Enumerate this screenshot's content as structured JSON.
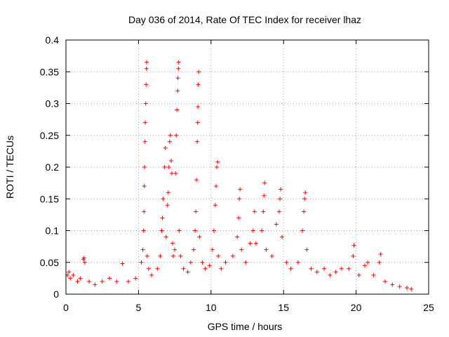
{
  "chart_data": {
    "type": "scatter",
    "title": "Day 036 of 2014, Rate Of TEC Index for receiver lhaz",
    "xlabel": "GPS time / hours",
    "ylabel": "ROTI / TECUs",
    "xlim": [
      0,
      25
    ],
    "ylim": [
      0,
      0.4
    ],
    "grid": true,
    "marker": "+",
    "color": "#ff0000",
    "xticks": [
      0,
      5,
      10,
      15,
      20,
      25
    ],
    "xtick_labels": [
      "0",
      "5",
      "10",
      "15",
      "20",
      "25"
    ],
    "yticks": [
      0,
      0.05,
      0.1,
      0.15,
      0.2,
      0.25,
      0.3,
      0.35,
      0.4
    ],
    "ytick_labels": [
      "0",
      "0.05",
      "0.1",
      "0.15",
      "0.2",
      "0.25",
      "0.3",
      "0.35",
      "0.4"
    ],
    "series": [
      {
        "name": "ROTI",
        "points": [
          [
            0.1,
            0.03
          ],
          [
            0.2,
            0.035
          ],
          [
            0.3,
            0.025
          ],
          [
            0.5,
            0.03
          ],
          [
            0.8,
            0.02
          ],
          [
            1.0,
            0.025
          ],
          [
            1.2,
            0.055
          ],
          [
            1.25,
            0.057
          ],
          [
            1.3,
            0.05
          ],
          [
            1.6,
            0.02
          ],
          [
            2.0,
            0.015
          ],
          [
            2.5,
            0.02
          ],
          [
            3.0,
            0.025
          ],
          [
            3.5,
            0.02
          ],
          [
            3.9,
            0.048
          ],
          [
            4.3,
            0.02
          ],
          [
            4.8,
            0.025
          ],
          [
            5.2,
            0.05
          ],
          [
            5.3,
            0.07
          ],
          [
            5.35,
            0.1
          ],
          [
            5.38,
            0.13
          ],
          [
            5.4,
            0.17
          ],
          [
            5.42,
            0.2
          ],
          [
            5.45,
            0.24
          ],
          [
            5.47,
            0.27
          ],
          [
            5.5,
            0.3
          ],
          [
            5.52,
            0.33
          ],
          [
            5.55,
            0.355
          ],
          [
            5.56,
            0.365
          ],
          [
            5.6,
            0.06
          ],
          [
            5.7,
            0.04
          ],
          [
            5.9,
            0.03
          ],
          [
            6.3,
            0.04
          ],
          [
            6.5,
            0.06
          ],
          [
            6.6,
            0.1
          ],
          [
            6.65,
            0.12
          ],
          [
            6.7,
            0.15
          ],
          [
            6.8,
            0.2
          ],
          [
            6.85,
            0.23
          ],
          [
            6.9,
            0.09
          ],
          [
            7.0,
            0.14
          ],
          [
            7.05,
            0.16
          ],
          [
            7.1,
            0.2
          ],
          [
            7.15,
            0.24
          ],
          [
            7.2,
            0.25
          ],
          [
            7.25,
            0.21
          ],
          [
            7.3,
            0.19
          ],
          [
            7.35,
            0.08
          ],
          [
            7.4,
            0.06
          ],
          [
            7.5,
            0.07
          ],
          [
            7.55,
            0.19
          ],
          [
            7.6,
            0.25
          ],
          [
            7.65,
            0.29
          ],
          [
            7.7,
            0.32
          ],
          [
            7.72,
            0.34
          ],
          [
            7.75,
            0.355
          ],
          [
            7.77,
            0.365
          ],
          [
            7.8,
            0.1
          ],
          [
            7.9,
            0.06
          ],
          [
            8.1,
            0.04
          ],
          [
            8.4,
            0.035
          ],
          [
            8.6,
            0.05
          ],
          [
            8.8,
            0.07
          ],
          [
            8.9,
            0.1
          ],
          [
            8.95,
            0.13
          ],
          [
            9.0,
            0.18
          ],
          [
            9.05,
            0.24
          ],
          [
            9.08,
            0.27
          ],
          [
            9.1,
            0.295
          ],
          [
            9.12,
            0.33
          ],
          [
            9.15,
            0.35
          ],
          [
            9.2,
            0.09
          ],
          [
            9.4,
            0.05
          ],
          [
            9.6,
            0.04
          ],
          [
            9.9,
            0.045
          ],
          [
            10.1,
            0.07
          ],
          [
            10.2,
            0.1
          ],
          [
            10.3,
            0.14
          ],
          [
            10.35,
            0.17
          ],
          [
            10.4,
            0.2
          ],
          [
            10.45,
            0.208
          ],
          [
            10.5,
            0.06
          ],
          [
            10.7,
            0.04
          ],
          [
            11.0,
            0.05
          ],
          [
            11.5,
            0.06
          ],
          [
            11.8,
            0.09
          ],
          [
            11.9,
            0.12
          ],
          [
            11.95,
            0.15
          ],
          [
            12.0,
            0.165
          ],
          [
            12.1,
            0.07
          ],
          [
            12.4,
            0.05
          ],
          [
            12.7,
            0.08
          ],
          [
            12.9,
            0.1
          ],
          [
            13.0,
            0.13
          ],
          [
            13.1,
            0.08
          ],
          [
            13.5,
            0.1
          ],
          [
            13.6,
            0.13
          ],
          [
            13.65,
            0.155
          ],
          [
            13.7,
            0.175
          ],
          [
            13.8,
            0.07
          ],
          [
            14.2,
            0.06
          ],
          [
            14.5,
            0.11
          ],
          [
            14.7,
            0.13
          ],
          [
            14.75,
            0.15
          ],
          [
            14.8,
            0.165
          ],
          [
            14.9,
            0.09
          ],
          [
            15.2,
            0.05
          ],
          [
            15.5,
            0.04
          ],
          [
            16.0,
            0.05
          ],
          [
            16.3,
            0.1
          ],
          [
            16.4,
            0.13
          ],
          [
            16.45,
            0.15
          ],
          [
            16.5,
            0.16
          ],
          [
            16.6,
            0.07
          ],
          [
            16.9,
            0.04
          ],
          [
            17.3,
            0.035
          ],
          [
            17.8,
            0.04
          ],
          [
            18.2,
            0.03
          ],
          [
            18.6,
            0.035
          ],
          [
            19.0,
            0.04
          ],
          [
            19.5,
            0.04
          ],
          [
            19.8,
            0.06
          ],
          [
            19.85,
            0.077
          ],
          [
            20.2,
            0.03
          ],
          [
            20.6,
            0.045
          ],
          [
            20.8,
            0.05
          ],
          [
            21.2,
            0.03
          ],
          [
            21.6,
            0.05
          ],
          [
            21.7,
            0.063
          ],
          [
            22.0,
            0.02
          ],
          [
            22.5,
            0.015
          ],
          [
            23.0,
            0.012
          ],
          [
            23.5,
            0.01
          ],
          [
            23.8,
            0.008
          ]
        ]
      }
    ]
  }
}
